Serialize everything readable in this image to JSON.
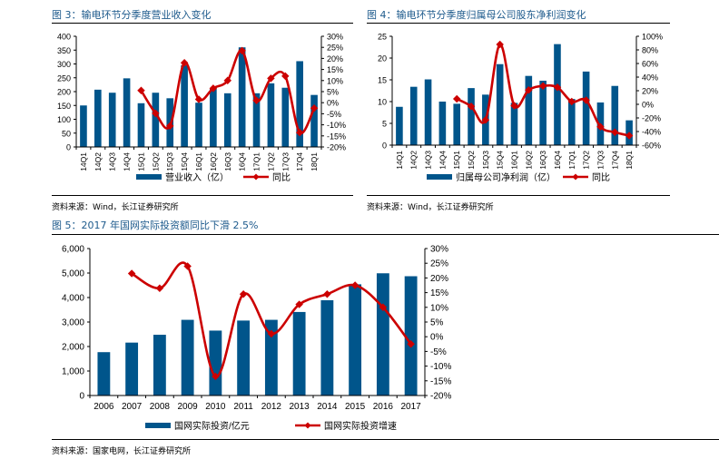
{
  "figures": [
    {
      "title": "图 3：输电环节分季度营业收入变化",
      "source": "资料来源：Wind，长江证券研究所"
    },
    {
      "title": "图 4：输电环节分季度归属母公司股东净利润变化",
      "source": "资料来源：Wind，长江证券研究所"
    },
    {
      "title": "图 5：2017 年国网实际投资额同比下滑 2.5%",
      "source": "资料来源：国家电网，长江证券研究所"
    }
  ],
  "colors": {
    "bar": "#00558b",
    "line": "#cc0000"
  },
  "chart_data": [
    {
      "type": "bar+line",
      "title": "输电环节分季度营业收入变化",
      "categories": [
        "14Q1",
        "14Q2",
        "14Q3",
        "14Q4",
        "15Q1",
        "15Q2",
        "15Q3",
        "15Q4",
        "16Q1",
        "16Q2",
        "16Q3",
        "16Q4",
        "17Q1",
        "17Q2",
        "17Q3",
        "17Q4",
        "18Q1"
      ],
      "series": [
        {
          "name": "营业收入（亿）",
          "type": "bar",
          "axis": "left",
          "values": [
            150,
            207,
            196,
            248,
            158,
            196,
            176,
            295,
            160,
            210,
            194,
            360,
            194,
            230,
            214,
            310,
            188
          ]
        },
        {
          "name": "同比",
          "type": "line",
          "axis": "right",
          "unit": "%",
          "values": [
            null,
            null,
            null,
            null,
            5.5,
            -4.8,
            -10.5,
            18,
            1.5,
            6.5,
            10,
            23.5,
            1,
            11,
            12,
            -13.5,
            -2.5
          ]
        }
      ],
      "y_left": {
        "min": 0,
        "max": 400,
        "step": 50,
        "ticks": [
          "0",
          "50",
          "100",
          "150",
          "200",
          "250",
          "300",
          "350",
          "400"
        ]
      },
      "y_right": {
        "min": -20,
        "max": 30,
        "step": 5,
        "ticks": [
          "-20%",
          "-15%",
          "-10%",
          "-5%",
          "0%",
          "5%",
          "10%",
          "15%",
          "20%",
          "25%",
          "30%"
        ]
      },
      "legend": [
        "营业收入（亿）",
        "同比"
      ],
      "legend_position": "bottom",
      "grid": false
    },
    {
      "type": "bar+line",
      "title": "输电环节分季度归属母公司股东净利润变化",
      "categories": [
        "14Q1",
        "14Q2",
        "14Q3",
        "14Q4",
        "15Q1",
        "15Q2",
        "15Q3",
        "15Q4",
        "16Q1",
        "16Q2",
        "16Q3",
        "16Q4",
        "17Q1",
        "17Q2",
        "17Q3",
        "17Q4",
        "18Q1"
      ],
      "series": [
        {
          "name": "归属母公司净利润（亿）",
          "type": "bar",
          "axis": "left",
          "values": [
            8.8,
            13.4,
            15.1,
            10.0,
            9.5,
            13.1,
            11.6,
            18.6,
            9.7,
            15.9,
            14.8,
            23.2,
            10.6,
            16.9,
            9.8,
            13.6,
            5.7
          ]
        },
        {
          "name": "同比",
          "type": "line",
          "axis": "right",
          "unit": "%",
          "values": [
            null,
            null,
            null,
            null,
            8,
            -3,
            -23,
            88,
            -2,
            21,
            27,
            25,
            4,
            6,
            -33,
            -41,
            -46
          ]
        }
      ],
      "y_left": {
        "min": 0,
        "max": 25,
        "step": 5,
        "ticks": [
          "0",
          "5",
          "10",
          "15",
          "20",
          "25"
        ]
      },
      "y_right": {
        "min": -60,
        "max": 100,
        "step": 20,
        "ticks": [
          "-60%",
          "-40%",
          "-20%",
          "0%",
          "20%",
          "40%",
          "60%",
          "80%",
          "100%"
        ]
      },
      "legend": [
        "归属母公司净利润（亿）",
        "同比"
      ],
      "legend_position": "bottom",
      "grid": false
    },
    {
      "type": "bar+line",
      "title": "2017 年国网实际投资额同比下滑 2.5%",
      "categories": [
        "2006",
        "2007",
        "2008",
        "2009",
        "2010",
        "2011",
        "2012",
        "2013",
        "2014",
        "2015",
        "2016",
        "2017"
      ],
      "series": [
        {
          "name": "国网实际投资/亿元",
          "type": "bar",
          "axis": "left",
          "values": [
            1770,
            2160,
            2480,
            3090,
            2650,
            3060,
            3090,
            3410,
            3890,
            4540,
            4990,
            4870
          ]
        },
        {
          "name": "国网实际投资增速",
          "type": "line",
          "axis": "right",
          "unit": "%",
          "values": [
            null,
            21.5,
            16.5,
            24,
            -13.5,
            14.5,
            1,
            11,
            14.5,
            17.5,
            10,
            -2.5
          ]
        }
      ],
      "y_left": {
        "min": 0,
        "max": 6000,
        "step": 1000,
        "ticks": [
          "0",
          "1,000",
          "2,000",
          "3,000",
          "4,000",
          "5,000",
          "6,000"
        ]
      },
      "y_right": {
        "min": -20,
        "max": 30,
        "step": 5,
        "ticks": [
          "-20%",
          "-15%",
          "-10%",
          "-5%",
          "0%",
          "5%",
          "10%",
          "15%",
          "20%",
          "25%",
          "30%"
        ]
      },
      "legend": [
        "国网实际投资/亿元",
        "国网实际投资增速"
      ],
      "legend_position": "bottom",
      "grid": false
    }
  ]
}
